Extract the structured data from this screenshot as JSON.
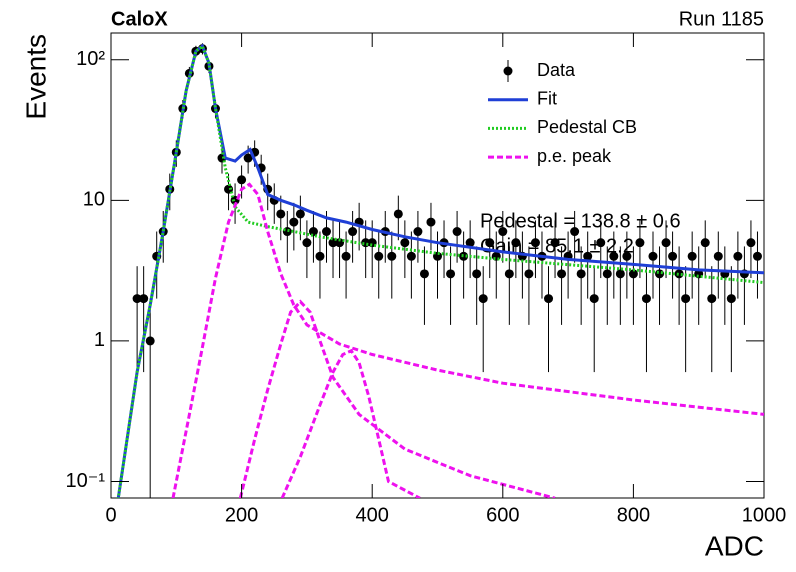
{
  "chart_data": {
    "type": "errorbar",
    "title": "CaloX",
    "subtitle": "Run 1185",
    "x_label": "ADC",
    "y_label": "Events",
    "annotations": [
      "Pedestal = 138.8 ± 0.6",
      "Gain = 85.1 ± 2.2"
    ],
    "xlim": [
      0,
      1000
    ],
    "xticks": [
      0,
      200,
      400,
      600,
      800,
      1000
    ],
    "ylim": [
      0.0763,
      155
    ],
    "ylog": true,
    "yticks": [
      {
        "value": 0.1,
        "label": "10⁻¹"
      },
      1,
      10,
      {
        "value": 100,
        "label": "10²"
      }
    ],
    "legend": "top-right",
    "series": [
      {
        "name": "Data",
        "type": "errorbar",
        "color": "#000000",
        "x": [
          40,
          50,
          60,
          70,
          80,
          90,
          100,
          110,
          120,
          130,
          140,
          150,
          160,
          170,
          180,
          190,
          200,
          210,
          220,
          230,
          240,
          250,
          260,
          270,
          280,
          290,
          300,
          310,
          320,
          330,
          340,
          350,
          360,
          370,
          380,
          390,
          400,
          410,
          420,
          430,
          440,
          450,
          460,
          470,
          480,
          490,
          500,
          510,
          520,
          530,
          540,
          550,
          560,
          570,
          580,
          590,
          600,
          610,
          620,
          630,
          640,
          650,
          660,
          670,
          680,
          690,
          700,
          710,
          720,
          730,
          740,
          750,
          760,
          770,
          780,
          790,
          800,
          810,
          820,
          830,
          840,
          850,
          860,
          870,
          880,
          890,
          900,
          910,
          920,
          930,
          940,
          950,
          960,
          970,
          980,
          990
        ],
        "values": [
          2,
          2,
          1,
          4,
          6,
          12,
          22,
          45,
          80,
          115,
          120,
          90,
          45,
          20,
          12,
          10,
          14,
          20,
          22,
          17,
          12,
          10,
          8,
          6,
          7,
          8,
          5,
          6,
          4,
          6,
          5,
          5,
          4,
          6,
          7,
          5,
          5,
          4,
          6,
          4,
          8,
          5,
          4,
          6,
          3,
          7,
          4,
          5,
          3,
          6,
          4,
          5,
          3,
          2,
          5,
          4,
          6,
          3,
          5,
          4,
          3,
          5,
          4,
          2,
          5,
          3,
          4,
          6,
          3,
          4,
          2,
          5,
          3,
          4,
          3,
          4,
          3,
          5,
          2,
          4,
          3,
          5,
          4,
          3,
          2,
          4,
          3,
          5,
          2,
          4,
          3,
          2,
          4,
          3,
          5,
          4
        ],
        "errors": [
          1.4,
          1.4,
          1,
          2,
          2.4,
          3.5,
          4.7,
          6.7,
          8.9,
          10.7,
          11,
          9.5,
          6.7,
          4.5,
          3.5,
          3.2,
          3.7,
          4.5,
          4.7,
          4.1,
          3.5,
          3.2,
          2.8,
          2.4,
          2.6,
          2.8,
          2.2,
          2.4,
          2,
          2.4,
          2.2,
          2.2,
          2,
          2.4,
          2.6,
          2.2,
          2.2,
          2,
          2.4,
          2,
          2.8,
          2.2,
          2,
          2.4,
          1.7,
          2.6,
          2,
          2.2,
          1.7,
          2.4,
          2,
          2.2,
          1.7,
          1.4,
          2.2,
          2,
          2.4,
          1.7,
          2.2,
          2,
          1.7,
          2.2,
          2,
          1.4,
          2.2,
          1.7,
          2,
          2.4,
          1.7,
          2,
          1.4,
          2.2,
          1.7,
          2,
          1.7,
          2,
          1.7,
          2.2,
          1.4,
          2,
          1.7,
          2.2,
          2,
          1.7,
          1.4,
          2,
          1.7,
          2.2,
          1.4,
          2,
          1.7,
          1.4,
          2,
          1.7,
          2.2,
          2
        ]
      },
      {
        "name": "Fit",
        "type": "line",
        "color": "#1f3fd6",
        "dash": "solid",
        "x": [
          10,
          40,
          60,
          80,
          100,
          115,
          130,
          140,
          150,
          160,
          175,
          190,
          200,
          213,
          225,
          240,
          260,
          280,
          300,
          330,
          360,
          400,
          450,
          500,
          600,
          700,
          800,
          900,
          1000
        ],
        "values": [
          0.07,
          0.6,
          1.8,
          6,
          22,
          60,
          115,
          125,
          95,
          45,
          20,
          19,
          21,
          23,
          17,
          11,
          10,
          9.3,
          8.5,
          7.5,
          7,
          6.2,
          5.5,
          5,
          4.3,
          3.8,
          3.5,
          3.2,
          3.05
        ]
      },
      {
        "name": "Pedestal CB",
        "type": "line",
        "color": "#22cc22",
        "dash": "dotted",
        "x": [
          10,
          40,
          60,
          80,
          100,
          115,
          130,
          140,
          150,
          160,
          175,
          190,
          210,
          240,
          280,
          320,
          400,
          500,
          600,
          800,
          1000
        ],
        "values": [
          0.07,
          0.6,
          1.8,
          6,
          22,
          60,
          115,
          125,
          95,
          45,
          17,
          9,
          7,
          6.5,
          6,
          5.5,
          4.8,
          4.2,
          3.8,
          3.2,
          2.6
        ]
      },
      {
        "name": "p.e. peak",
        "type": "line",
        "color": "#ee11ee",
        "dash": "dashed",
        "x": [
          95,
          120,
          140,
          160,
          180,
          200,
          212,
          225,
          240,
          260,
          280,
          300,
          350,
          400,
          500,
          600,
          800,
          1000
        ],
        "values": [
          0.076,
          0.3,
          0.9,
          2.8,
          7,
          12,
          13,
          11,
          6,
          3,
          1.8,
          1.3,
          0.95,
          0.8,
          0.62,
          0.5,
          0.38,
          0.3
        ]
      },
      {
        "type": "line",
        "color": "#ee11ee",
        "dash": "dashed",
        "x": [
          198,
          220,
          240,
          260,
          275,
          290,
          305,
          320,
          340,
          380,
          450,
          550,
          680
        ],
        "values": [
          0.076,
          0.2,
          0.45,
          0.95,
          1.6,
          1.9,
          1.6,
          1,
          0.55,
          0.3,
          0.17,
          0.11,
          0.076
        ]
      },
      {
        "type": "line",
        "color": "#ee11ee",
        "dash": "dashed",
        "x": [
          262,
          290,
          320,
          340,
          355,
          368,
          380,
          395,
          410,
          425,
          473
        ],
        "values": [
          0.076,
          0.15,
          0.35,
          0.6,
          0.8,
          0.85,
          0.7,
          0.4,
          0.2,
          0.1,
          0.076
        ]
      }
    ]
  }
}
